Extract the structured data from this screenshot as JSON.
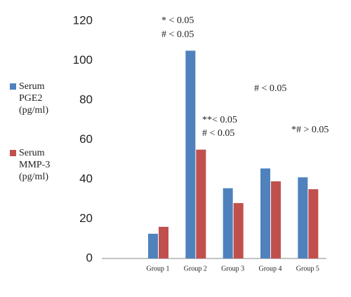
{
  "chart_data": {
    "type": "bar",
    "categories": [
      null,
      "Group 1",
      "Group 2",
      "Group 3",
      "Group 4",
      "Group 5"
    ],
    "series": [
      {
        "name": "Serum PGE2 (pg/ml)",
        "color": "#4f81bd",
        "values": [
          null,
          12.5,
          105,
          35.5,
          45.5,
          41
        ]
      },
      {
        "name": "Serum MMP-3 (pg/ml)",
        "color": "#c0504d",
        "values": [
          null,
          16,
          55,
          28,
          39,
          35
        ]
      }
    ],
    "ylim": [
      0,
      120
    ],
    "yticks": [
      0,
      20,
      40,
      60,
      80,
      100,
      120
    ],
    "grid": false,
    "legend": "left",
    "annotations": [
      "* < 0.05",
      "# < 0.05",
      "**< 0.05",
      "# < 0.05",
      "# < 0.05",
      "*# > 0.05"
    ]
  }
}
